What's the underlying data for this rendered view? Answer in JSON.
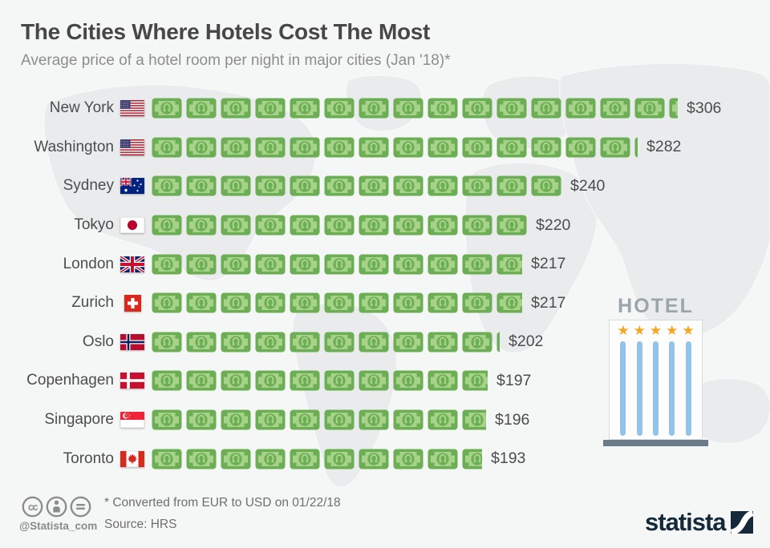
{
  "header": {
    "title": "The Cities Where Hotels Cost The Most",
    "subtitle": "Average price of a hotel room per night in major cities (Jan '18)*"
  },
  "chart_data": {
    "type": "bar",
    "subtype": "pictogram-bar",
    "title": "The Cities Where Hotels Cost The Most",
    "subtitle": "Average price of a hotel room per night in major cities (Jan '18)*",
    "unit": "USD per night",
    "icon": "dollar-bill-icon",
    "unit_per_icon": 20,
    "categories": [
      "New York",
      "Washington",
      "Sydney",
      "Tokyo",
      "London",
      "Zurich",
      "Oslo",
      "Copenhagen",
      "Singapore",
      "Toronto"
    ],
    "values": [
      306,
      282,
      240,
      220,
      217,
      217,
      202,
      197,
      196,
      193
    ],
    "rows": [
      {
        "city": "New York",
        "flag": "us",
        "flag_name": "usa-flag-icon",
        "value": 306,
        "label": "$306"
      },
      {
        "city": "Washington",
        "flag": "us",
        "flag_name": "usa-flag-icon",
        "value": 282,
        "label": "$282"
      },
      {
        "city": "Sydney",
        "flag": "au",
        "flag_name": "australia-flag-icon",
        "value": 240,
        "label": "$240"
      },
      {
        "city": "Tokyo",
        "flag": "jp",
        "flag_name": "japan-flag-icon",
        "value": 220,
        "label": "$220"
      },
      {
        "city": "London",
        "flag": "gb",
        "flag_name": "uk-flag-icon",
        "value": 217,
        "label": "$217"
      },
      {
        "city": "Zurich",
        "flag": "ch",
        "flag_name": "switzerland-flag-icon",
        "value": 217,
        "label": "$217"
      },
      {
        "city": "Oslo",
        "flag": "no",
        "flag_name": "norway-flag-icon",
        "value": 202,
        "label": "$202"
      },
      {
        "city": "Copenhagen",
        "flag": "dk",
        "flag_name": "denmark-flag-icon",
        "value": 197,
        "label": "$197"
      },
      {
        "city": "Singapore",
        "flag": "sg",
        "flag_name": "singapore-flag-icon",
        "value": 196,
        "label": "$196"
      },
      {
        "city": "Toronto",
        "flag": "ca",
        "flag_name": "canada-flag-icon",
        "value": 193,
        "label": "$193"
      }
    ]
  },
  "illustration": {
    "hotel_sign": "HOTEL",
    "star_count": 5,
    "pillar_count": 5,
    "star_glyph": "★",
    "star_color": "#f5a623",
    "pillar_color": "#92c3e8"
  },
  "footer": {
    "note": "* Converted from EUR to USD on 01/22/18",
    "source": "Source: HRS",
    "handle": "@Statista_com",
    "license_icons": [
      "cc-icon",
      "cc-attribution-icon",
      "cc-no-derivatives-icon"
    ],
    "brand": "statista"
  },
  "colors": {
    "bill_frame_green": "#6cae53",
    "bill_light_green": "#a6d28a",
    "brand_navy": "#15293b",
    "map_land": "#e9ebec",
    "background": "#f5f6f6",
    "title_gray": "#474747",
    "text_gray": "#4d4d4d"
  }
}
